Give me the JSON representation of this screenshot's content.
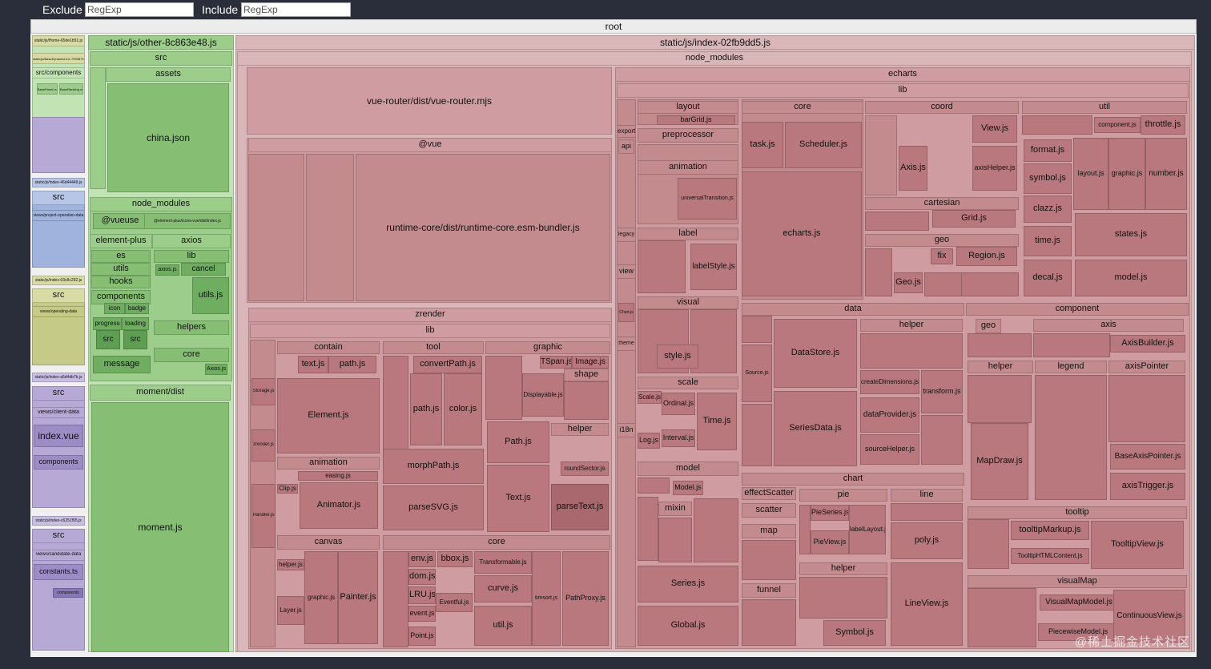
{
  "toolbar": {
    "exclude_label": "Exclude",
    "exclude_placeholder": "RegExp",
    "include_label": "Include",
    "include_placeholder": "RegExp"
  },
  "colors": {
    "background": "#2a2d3a",
    "index_red": "#c48b8f",
    "index_red_dark": "#a35f66",
    "other_green": "#9ccd8b",
    "other_green_dark": "#5e9e52",
    "small_chunks_purple": "#b7a9d6"
  },
  "watermark": "@稀土掘金技术社区",
  "tiles": [
    {
      "id": "root",
      "text": "root"
    },
    {
      "id": "home",
      "text": "static/js/Home-65de1b51.js"
    },
    {
      "id": "basedyn",
      "text": "static/js/BaseDynamicLine-7993874e.js"
    },
    {
      "id": "srccomp",
      "text": "src/components"
    },
    {
      "id": "basepanel",
      "text": "BasePanel.vue"
    },
    {
      "id": "baseranking",
      "text": "BaseRanking.vue"
    },
    {
      "id": "idx4644",
      "text": "static/js/index-46d44449.js"
    },
    {
      "id": "src2",
      "text": "src"
    },
    {
      "id": "views_proj",
      "text": "views/project-operation-data"
    },
    {
      "id": "idx03c8",
      "text": "static/js/index-03c8c292.js"
    },
    {
      "id": "src3",
      "text": "src"
    },
    {
      "id": "views_oper",
      "text": "views/operating-data"
    },
    {
      "id": "idxa5d4",
      "text": "static/js/index-a5d4db7b.js"
    },
    {
      "id": "src4",
      "text": "src"
    },
    {
      "id": "views_client",
      "text": "views/client-data"
    },
    {
      "id": "indexvue",
      "text": "index.vue"
    },
    {
      "id": "components4",
      "text": "components"
    },
    {
      "id": "idxc625",
      "text": "static/js/index-c6251f95.js"
    },
    {
      "id": "src5",
      "text": "src"
    },
    {
      "id": "views_cand",
      "text": "views/candidate-data"
    },
    {
      "id": "constants",
      "text": "constants.ts"
    },
    {
      "id": "components5",
      "text": "components"
    },
    {
      "id": "other",
      "text": "static/js/other-8c863e48.js"
    },
    {
      "id": "other_src",
      "text": "src"
    },
    {
      "id": "assets",
      "text": "assets"
    },
    {
      "id": "chinajson",
      "text": "china.json"
    },
    {
      "id": "nm2",
      "text": "node_modules"
    },
    {
      "id": "vueuse",
      "text": "@vueuse"
    },
    {
      "id": "elicons",
      "text": "@element-plus/icons-vue/dist/index.js"
    },
    {
      "id": "elplus",
      "text": "element-plus"
    },
    {
      "id": "es",
      "text": "es"
    },
    {
      "id": "utils_ep",
      "text": "utils"
    },
    {
      "id": "hooks",
      "text": "hooks"
    },
    {
      "id": "components_ep",
      "text": "components"
    },
    {
      "id": "icon",
      "text": "icon"
    },
    {
      "id": "badge",
      "text": "badge"
    },
    {
      "id": "progress",
      "text": "progress"
    },
    {
      "id": "loading",
      "text": "loading"
    },
    {
      "id": "src_ep1",
      "text": "src"
    },
    {
      "id": "src_ep2",
      "text": "src"
    },
    {
      "id": "message",
      "text": "message"
    },
    {
      "id": "axios",
      "text": "axios"
    },
    {
      "id": "lib_ax",
      "text": "lib"
    },
    {
      "id": "axiosjs",
      "text": "axios.js"
    },
    {
      "id": "cancel",
      "text": "cancel"
    },
    {
      "id": "utilsjs_ax",
      "text": "utils.js"
    },
    {
      "id": "helpers_ax",
      "text": "helpers"
    },
    {
      "id": "core_ax",
      "text": "core"
    },
    {
      "id": "axiosjs2",
      "text": "Axios.js"
    },
    {
      "id": "moment_dist",
      "text": "moment/dist"
    },
    {
      "id": "momentjs",
      "text": "moment.js"
    },
    {
      "id": "index",
      "text": "static/js/index-02fb9dd5.js"
    },
    {
      "id": "nm",
      "text": "node_modules"
    },
    {
      "id": "vuerouter",
      "text": "vue-router/dist/vue-router.mjs"
    },
    {
      "id": "vue",
      "text": "@vue"
    },
    {
      "id": "runtimecore",
      "text": "runtime-core/dist/runtime-core.esm-bundler.js"
    },
    {
      "id": "zrender",
      "text": "zrender"
    },
    {
      "id": "zr_lib",
      "text": "lib"
    },
    {
      "id": "contain",
      "text": "contain"
    },
    {
      "id": "textjs",
      "text": "text.js"
    },
    {
      "id": "pathjs_c",
      "text": "path.js"
    },
    {
      "id": "elementjs",
      "text": "Element.js"
    },
    {
      "id": "animation_zr",
      "text": "animation"
    },
    {
      "id": "easingjs",
      "text": "easing.js"
    },
    {
      "id": "clipjs",
      "text": "Clip.js"
    },
    {
      "id": "animatorjs",
      "text": "Animator.js"
    },
    {
      "id": "canvas",
      "text": "canvas"
    },
    {
      "id": "helperjs_cv",
      "text": "helper.js"
    },
    {
      "id": "layerjs",
      "text": "Layer.js"
    },
    {
      "id": "graphicjs_cv",
      "text": "graphic.js"
    },
    {
      "id": "painterjs",
      "text": "Painter.js"
    },
    {
      "id": "storagejs",
      "text": "Storage.js"
    },
    {
      "id": "zrenderjs",
      "text": "zrender.js"
    },
    {
      "id": "handlerjs",
      "text": "Handler.js"
    },
    {
      "id": "tool",
      "text": "tool"
    },
    {
      "id": "convertpath",
      "text": "convertPath.js"
    },
    {
      "id": "pathjs_t",
      "text": "path.js"
    },
    {
      "id": "colorjs",
      "text": "color.js"
    },
    {
      "id": "morphpath",
      "text": "morphPath.js"
    },
    {
      "id": "parsesvg",
      "text": "parseSVG.js"
    },
    {
      "id": "graphic_zr",
      "text": "graphic"
    },
    {
      "id": "tspan",
      "text": "TSpan.js"
    },
    {
      "id": "imagejs",
      "text": "Image.js"
    },
    {
      "id": "displayable",
      "text": "Displayable.js"
    },
    {
      "id": "shape",
      "text": "shape"
    },
    {
      "id": "pathjs_g",
      "text": "Path.js"
    },
    {
      "id": "textjs_g",
      "text": "Text.js"
    },
    {
      "id": "helper_g",
      "text": "helper"
    },
    {
      "id": "roundsector",
      "text": "roundSector.js"
    },
    {
      "id": "parsetext",
      "text": "parseText.js"
    },
    {
      "id": "core_zr",
      "text": "core"
    },
    {
      "id": "envjs",
      "text": "env.js"
    },
    {
      "id": "bboxjs",
      "text": "bbox.js"
    },
    {
      "id": "domjs",
      "text": "dom.js"
    },
    {
      "id": "transformable",
      "text": "Transformable.js"
    },
    {
      "id": "lrujs",
      "text": "LRU.js"
    },
    {
      "id": "curvejs",
      "text": "curve.js"
    },
    {
      "id": "eventjs",
      "text": "event.js"
    },
    {
      "id": "eventful",
      "text": "Eventful.js"
    },
    {
      "id": "pointjs",
      "text": "Point.js"
    },
    {
      "id": "utiljs_zr",
      "text": "util.js"
    },
    {
      "id": "timsort",
      "text": "timsort.js"
    },
    {
      "id": "pathproxy",
      "text": "PathProxy.js"
    },
    {
      "id": "echarts",
      "text": "echarts"
    },
    {
      "id": "ec_lib",
      "text": "lib"
    },
    {
      "id": "export",
      "text": "export"
    },
    {
      "id": "api",
      "text": "api"
    },
    {
      "id": "legacy",
      "text": "legacy"
    },
    {
      "id": "view",
      "text": "view"
    },
    {
      "id": "chartjs",
      "text": "Chart.js"
    },
    {
      "id": "theme",
      "text": "theme"
    },
    {
      "id": "i18n",
      "text": "i18n"
    },
    {
      "id": "layout",
      "text": "layout"
    },
    {
      "id": "bargrid",
      "text": "barGrid.js"
    },
    {
      "id": "preprocessor",
      "text": "preprocessor"
    },
    {
      "id": "animation_ec",
      "text": "animation"
    },
    {
      "id": "universaltrans",
      "text": "universalTransition.js"
    },
    {
      "id": "label",
      "text": "label"
    },
    {
      "id": "labelstyle",
      "text": "labelStyle.js"
    },
    {
      "id": "visual",
      "text": "visual"
    },
    {
      "id": "stylejs",
      "text": "style.js"
    },
    {
      "id": "scale",
      "text": "Scale.js"
    },
    {
      "id": "scale_dir",
      "text": "scale"
    },
    {
      "id": "ordinaljs",
      "text": "Ordinal.js"
    },
    {
      "id": "timejs_s",
      "text": "Time.js"
    },
    {
      "id": "logjs",
      "text": "Log.js"
    },
    {
      "id": "intervaljs",
      "text": "Interval.js"
    },
    {
      "id": "model",
      "text": "model"
    },
    {
      "id": "modeljs",
      "text": "Model.js"
    },
    {
      "id": "mixin",
      "text": "mixin"
    },
    {
      "id": "seriesjs",
      "text": "Series.js"
    },
    {
      "id": "globaljs",
      "text": "Global.js"
    },
    {
      "id": "core_ec",
      "text": "core"
    },
    {
      "id": "taskjs",
      "text": "task.js"
    },
    {
      "id": "scheduler",
      "text": "Scheduler.js"
    },
    {
      "id": "echartsjs",
      "text": "echarts.js"
    },
    {
      "id": "coord",
      "text": "coord"
    },
    {
      "id": "viewjs",
      "text": "View.js"
    },
    {
      "id": "axisjs",
      "text": "Axis.js"
    },
    {
      "id": "axishelper",
      "text": "axisHelper.js"
    },
    {
      "id": "cartesian",
      "text": "cartesian"
    },
    {
      "id": "gridjs",
      "text": "Grid.js"
    },
    {
      "id": "geo",
      "text": "geo"
    },
    {
      "id": "fix",
      "text": "fix"
    },
    {
      "id": "regionjs",
      "text": "Region.js"
    },
    {
      "id": "geojs",
      "text": "Geo.js"
    },
    {
      "id": "util",
      "text": "util"
    },
    {
      "id": "component_u",
      "text": "component.js"
    },
    {
      "id": "throttle",
      "text": "throttle.js"
    },
    {
      "id": "formatjs",
      "text": "format.js"
    },
    {
      "id": "symboljs",
      "text": "symbol.js"
    },
    {
      "id": "layoutjs",
      "text": "layout.js"
    },
    {
      "id": "graphicjs_u",
      "text": "graphic.js"
    },
    {
      "id": "numberjs",
      "text": "number.js"
    },
    {
      "id": "clazzjs",
      "text": "clazz.js"
    },
    {
      "id": "timejs_u",
      "text": "time.js"
    },
    {
      "id": "statesjs",
      "text": "states.js"
    },
    {
      "id": "decaljs",
      "text": "decal.js"
    },
    {
      "id": "modeljs_u",
      "text": "model.js"
    },
    {
      "id": "data",
      "text": "data"
    },
    {
      "id": "datastore",
      "text": "DataStore.js"
    },
    {
      "id": "sourcejs",
      "text": "Source.js"
    },
    {
      "id": "seriesdata",
      "text": "SeriesData.js"
    },
    {
      "id": "helper_d",
      "text": "helper"
    },
    {
      "id": "createdims",
      "text": "createDimensions.js"
    },
    {
      "id": "transformjs",
      "text": "transform.js"
    },
    {
      "id": "dataprovider",
      "text": "dataProvider.js"
    },
    {
      "id": "sourcehelper",
      "text": "sourceHelper.js"
    },
    {
      "id": "component",
      "text": "component"
    },
    {
      "id": "geo_c",
      "text": "geo"
    },
    {
      "id": "axis_c",
      "text": "axis"
    },
    {
      "id": "axisbuilder",
      "text": "AxisBuilder.js"
    },
    {
      "id": "helper_c",
      "text": "helper"
    },
    {
      "id": "legend",
      "text": "legend"
    },
    {
      "id": "axispointer",
      "text": "axisPointer"
    },
    {
      "id": "mapdraw",
      "text": "MapDraw.js"
    },
    {
      "id": "basaxisptr",
      "text": "BaseAxisPointer.js"
    },
    {
      "id": "axistrigger",
      "text": "axisTrigger.js"
    },
    {
      "id": "tooltip",
      "text": "tooltip"
    },
    {
      "id": "tooltipmarkup",
      "text": "tooltipMarkup.js"
    },
    {
      "id": "tooltiphtml",
      "text": "TooltipHTMLContent.js"
    },
    {
      "id": "tooltipview",
      "text": "TooltipView.js"
    },
    {
      "id": "visualmap",
      "text": "visualMap"
    },
    {
      "id": "visualmapmodel",
      "text": "VisualMapModel.js"
    },
    {
      "id": "piecewisemodel",
      "text": "PiecewiseModel.js"
    },
    {
      "id": "continuousview",
      "text": "ContinuousView.js"
    },
    {
      "id": "chart",
      "text": "chart"
    },
    {
      "id": "effectscatter",
      "text": "effectScatter"
    },
    {
      "id": "scatter",
      "text": "scatter"
    },
    {
      "id": "map",
      "text": "map"
    },
    {
      "id": "funnel",
      "text": "funnel"
    },
    {
      "id": "pie",
      "text": "pie"
    },
    {
      "id": "pieseries",
      "text": "PieSeries.js"
    },
    {
      "id": "labellayout",
      "text": "labelLayout.js"
    },
    {
      "id": "pieview",
      "text": "PieView.js"
    },
    {
      "id": "helper_ch",
      "text": "helper"
    },
    {
      "id": "symboljs_ch",
      "text": "Symbol.js"
    },
    {
      "id": "line",
      "text": "line"
    },
    {
      "id": "polyjs",
      "text": "poly.js"
    },
    {
      "id": "lineview",
      "text": "LineView.js"
    }
  ]
}
